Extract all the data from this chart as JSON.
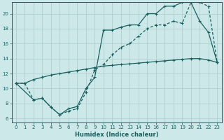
{
  "xlabel": "Humidex (Indice chaleur)",
  "background_color": "#cce8e8",
  "grid_color": "#aacccc",
  "line_color": "#1a6060",
  "xlim": [
    -0.5,
    23.5
  ],
  "ylim": [
    5.5,
    21.5
  ],
  "xticks": [
    0,
    1,
    2,
    3,
    4,
    5,
    6,
    7,
    8,
    9,
    10,
    11,
    12,
    13,
    14,
    15,
    16,
    17,
    18,
    19,
    20,
    21,
    22,
    23
  ],
  "yticks": [
    6,
    8,
    10,
    12,
    14,
    16,
    18,
    20
  ],
  "curve1_x": [
    0,
    1,
    2,
    3,
    4,
    5,
    6,
    7,
    8,
    9,
    10,
    11,
    12,
    13,
    14,
    15,
    16,
    17,
    18,
    19,
    20,
    21,
    22,
    23
  ],
  "curve1_y": [
    10.7,
    10.7,
    11.2,
    11.5,
    11.8,
    12.0,
    12.2,
    12.4,
    12.6,
    12.8,
    13.0,
    13.1,
    13.2,
    13.3,
    13.4,
    13.5,
    13.6,
    13.7,
    13.8,
    13.9,
    14.0,
    14.0,
    13.8,
    13.5
  ],
  "curve2_x": [
    0,
    1,
    2,
    3,
    4,
    5,
    6,
    7,
    8,
    9,
    10,
    11,
    12,
    13,
    14,
    15,
    16,
    17,
    18,
    19,
    20,
    21,
    22,
    23
  ],
  "curve2_y": [
    10.7,
    10.7,
    8.5,
    8.7,
    7.5,
    6.5,
    7.0,
    7.3,
    9.5,
    12.5,
    13.2,
    14.5,
    15.5,
    16.0,
    17.0,
    18.0,
    18.5,
    18.5,
    19.0,
    18.7,
    21.5,
    21.5,
    21.0,
    13.5
  ],
  "curve3_x": [
    0,
    2,
    3,
    4,
    5,
    6,
    7,
    8,
    9,
    10,
    11,
    12,
    13,
    14,
    15,
    16,
    17,
    18,
    19,
    20,
    21,
    22,
    23
  ],
  "curve3_y": [
    10.7,
    8.5,
    8.7,
    7.5,
    6.5,
    7.3,
    7.6,
    10.0,
    11.5,
    17.8,
    17.8,
    18.2,
    18.5,
    18.5,
    20.0,
    20.0,
    21.0,
    21.0,
    21.5,
    21.5,
    19.0,
    17.5,
    13.5
  ]
}
